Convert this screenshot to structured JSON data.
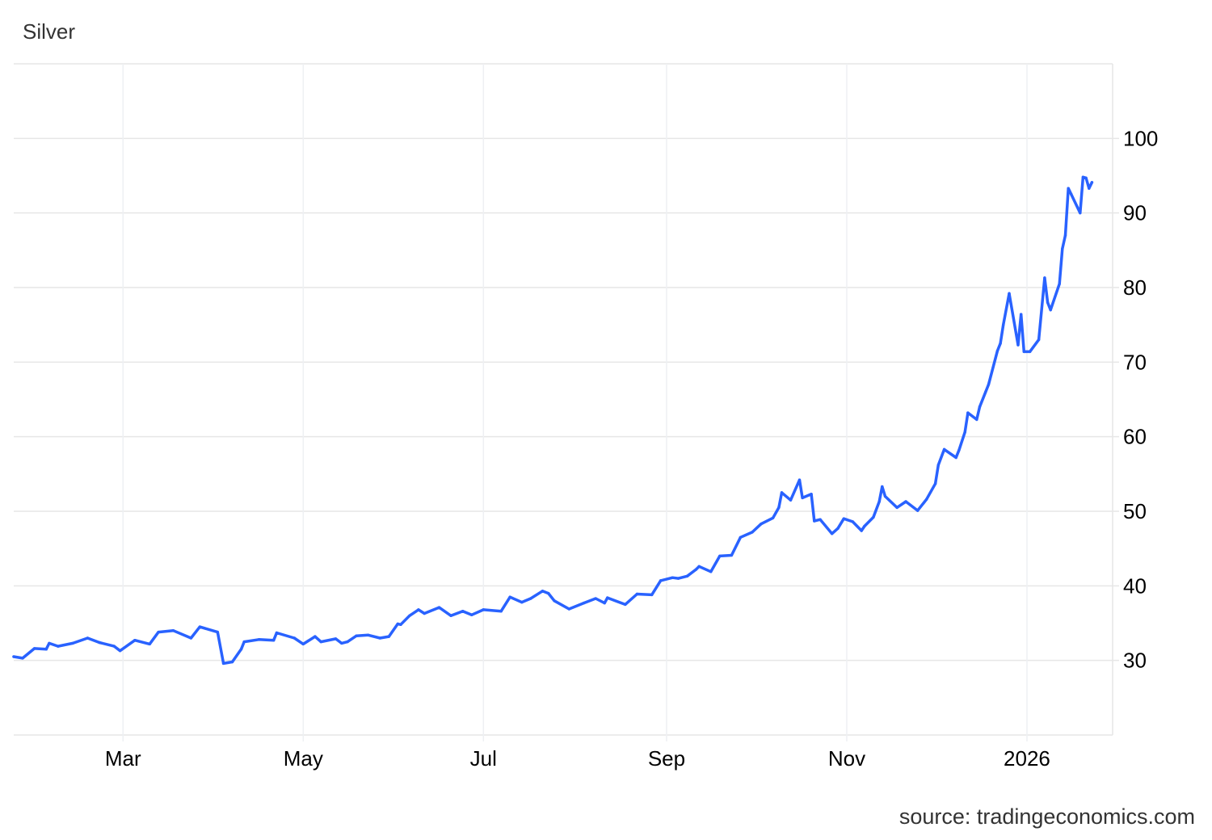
{
  "chart_data": {
    "type": "line",
    "title": "Silver",
    "source": "source: tradingeconomics.com",
    "xlim": [
      "2025-01-23",
      "2026-01-30"
    ],
    "ylim": [
      20,
      110
    ],
    "y_axis_position": "right",
    "grid": true,
    "line_color": "#2962ff",
    "grid_color": "#e6e6e6",
    "x_ticks": [
      {
        "date": "2025-03-01",
        "label": "Mar"
      },
      {
        "date": "2025-05-01",
        "label": "May"
      },
      {
        "date": "2025-07-01",
        "label": "Jul"
      },
      {
        "date": "2025-09-01",
        "label": "Sep"
      },
      {
        "date": "2025-11-01",
        "label": "Nov"
      },
      {
        "date": "2026-01-01",
        "label": "2026"
      }
    ],
    "y_ticks": [
      30,
      40,
      50,
      60,
      70,
      80,
      90,
      100
    ],
    "series": [
      {
        "x": [
          "2025-01-23",
          "2025-01-26",
          "2025-01-30",
          "2025-02-03",
          "2025-02-04",
          "2025-02-07",
          "2025-02-12",
          "2025-02-17",
          "2025-02-21",
          "2025-02-26",
          "2025-02-28",
          "2025-03-05",
          "2025-03-10",
          "2025-03-13",
          "2025-03-18",
          "2025-03-24",
          "2025-03-27",
          "2025-04-02",
          "2025-04-04",
          "2025-04-07",
          "2025-04-10",
          "2025-04-11",
          "2025-04-16",
          "2025-04-21",
          "2025-04-22",
          "2025-04-28",
          "2025-05-01",
          "2025-05-05",
          "2025-05-07",
          "2025-05-12",
          "2025-05-14",
          "2025-05-16",
          "2025-05-19",
          "2025-05-23",
          "2025-05-27",
          "2025-05-30",
          "2025-06-02",
          "2025-06-03",
          "2025-06-06",
          "2025-06-09",
          "2025-06-11",
          "2025-06-16",
          "2025-06-20",
          "2025-06-24",
          "2025-06-27",
          "2025-07-01",
          "2025-07-07",
          "2025-07-10",
          "2025-07-14",
          "2025-07-17",
          "2025-07-21",
          "2025-07-23",
          "2025-07-25",
          "2025-07-30",
          "2025-08-04",
          "2025-08-08",
          "2025-08-11",
          "2025-08-12",
          "2025-08-18",
          "2025-08-22",
          "2025-08-27",
          "2025-08-30",
          "2025-09-03",
          "2025-09-05",
          "2025-09-08",
          "2025-09-11",
          "2025-09-12",
          "2025-09-16",
          "2025-09-19",
          "2025-09-23",
          "2025-09-26",
          "2025-09-30",
          "2025-10-03",
          "2025-10-07",
          "2025-10-09",
          "2025-10-10",
          "2025-10-13",
          "2025-10-16",
          "2025-10-17",
          "2025-10-20",
          "2025-10-21",
          "2025-10-23",
          "2025-10-27",
          "2025-10-29",
          "2025-10-31",
          "2025-11-03",
          "2025-11-06",
          "2025-11-07",
          "2025-11-10",
          "2025-11-12",
          "2025-11-13",
          "2025-11-14",
          "2025-11-18",
          "2025-11-21",
          "2025-11-25",
          "2025-11-28",
          "2025-12-01",
          "2025-12-02",
          "2025-12-04",
          "2025-12-08",
          "2025-12-09",
          "2025-12-11",
          "2025-12-12",
          "2025-12-15",
          "2025-12-16",
          "2025-12-18",
          "2025-12-19",
          "2025-12-22",
          "2025-12-23",
          "2025-12-24",
          "2025-12-26",
          "2025-12-29",
          "2025-12-30",
          "2025-12-31",
          "2026-01-02",
          "2026-01-05",
          "2026-01-07",
          "2026-01-08",
          "2026-01-09",
          "2026-01-12",
          "2026-01-13",
          "2026-01-14",
          "2026-01-15",
          "2026-01-16",
          "2026-01-19",
          "2026-01-20",
          "2026-01-21",
          "2026-01-22",
          "2026-01-23"
        ],
        "values": [
          30.5,
          30.3,
          31.6,
          31.5,
          32.3,
          31.9,
          32.3,
          33.0,
          32.4,
          31.9,
          31.3,
          32.7,
          32.2,
          33.8,
          34.0,
          33.0,
          34.5,
          33.8,
          29.6,
          29.8,
          31.5,
          32.5,
          32.8,
          32.7,
          33.7,
          33.0,
          32.2,
          33.2,
          32.5,
          32.9,
          32.3,
          32.5,
          33.3,
          33.4,
          33.0,
          33.2,
          34.9,
          34.8,
          36.0,
          36.8,
          36.3,
          37.1,
          36.0,
          36.6,
          36.1,
          36.8,
          36.6,
          38.5,
          37.8,
          38.3,
          39.3,
          39.0,
          38.0,
          36.9,
          37.7,
          38.3,
          37.7,
          38.4,
          37.5,
          38.9,
          38.8,
          40.7,
          41.1,
          41.0,
          41.3,
          42.2,
          42.6,
          41.9,
          44.0,
          44.1,
          46.5,
          47.2,
          48.3,
          49.1,
          50.5,
          52.5,
          51.5,
          54.2,
          51.8,
          52.3,
          48.7,
          48.9,
          47.0,
          47.7,
          49.0,
          48.6,
          47.4,
          48.0,
          49.2,
          51.3,
          53.3,
          52.0,
          50.5,
          51.3,
          50.1,
          51.6,
          53.7,
          56.2,
          58.3,
          57.2,
          58.2,
          60.6,
          63.2,
          62.3,
          64.0,
          66.0,
          67.0,
          71.5,
          72.5,
          75.0,
          79.2,
          72.3,
          76.4,
          71.4,
          71.4,
          73.0,
          81.3,
          78.0,
          77.0,
          80.5,
          85.2,
          87.0,
          93.3,
          92.5,
          90.0,
          94.8,
          94.7,
          93.3,
          94.1
        ]
      }
    ]
  }
}
